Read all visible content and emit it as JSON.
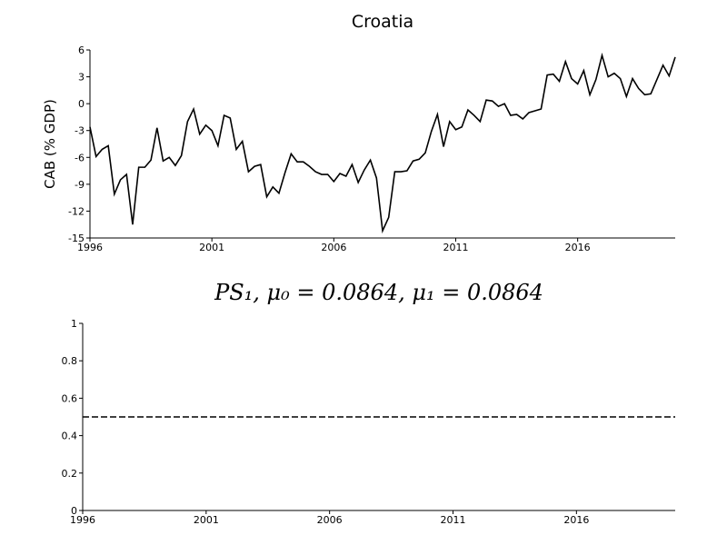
{
  "chart_data": [
    {
      "type": "line",
      "title": "Croatia",
      "ylabel": "CAB (% GDP)",
      "x": [
        1996,
        1996.25,
        1996.5,
        1996.75,
        1997,
        1997.25,
        1997.5,
        1997.75,
        1998,
        1998.25,
        1998.5,
        1998.75,
        1999,
        1999.25,
        1999.5,
        1999.75,
        2000,
        2000.25,
        2000.5,
        2000.75,
        2001,
        2001.25,
        2001.5,
        2001.75,
        2002,
        2002.25,
        2002.5,
        2002.75,
        2003,
        2003.25,
        2003.5,
        2003.75,
        2004,
        2004.25,
        2004.5,
        2004.75,
        2005,
        2005.25,
        2005.5,
        2005.75,
        2006,
        2006.25,
        2006.5,
        2006.75,
        2007,
        2007.25,
        2007.5,
        2007.75,
        2008,
        2008.25,
        2008.5,
        2008.75,
        2009,
        2009.25,
        2009.5,
        2009.75,
        2010,
        2010.25,
        2010.5,
        2010.75,
        2011,
        2011.25,
        2011.5,
        2011.75,
        2012,
        2012.25,
        2012.5,
        2012.75,
        2013,
        2013.25,
        2013.5,
        2013.75,
        2014,
        2014.25,
        2014.5,
        2014.75,
        2015,
        2015.25,
        2015.5,
        2015.75,
        2016,
        2016.25,
        2016.5,
        2016.75,
        2017,
        2017.25,
        2017.5,
        2017.75,
        2018,
        2018.25,
        2018.5,
        2018.75,
        2019,
        2019.25,
        2019.5,
        2019.75,
        2020
      ],
      "series": [
        {
          "color": "#000000",
          "values": [
            -2.6,
            -5.9,
            -5.1,
            -4.7,
            -10.1,
            -8.5,
            -7.9,
            -13.5,
            -7.1,
            -7.1,
            -6.3,
            -2.7,
            -6.4,
            -6.0,
            -6.9,
            -5.8,
            -2.0,
            -0.6,
            -3.4,
            -2.4,
            -3.0,
            -4.7,
            -1.3,
            -1.6,
            -5.1,
            -4.2,
            -7.6,
            -7.0,
            -6.8,
            -10.4,
            -9.3,
            -10.0,
            -7.7,
            -5.6,
            -6.5,
            -6.5,
            -7.0,
            -7.6,
            -7.9,
            -7.9,
            -8.7,
            -7.8,
            -8.1,
            -6.8,
            -8.8,
            -7.4,
            -6.3,
            -8.3,
            -14.2,
            -12.7,
            -7.6,
            -7.6,
            -7.5,
            -6.4,
            -6.2,
            -5.5,
            -3.1,
            -1.2,
            -4.8,
            -2.0,
            -2.9,
            -2.6,
            -0.7,
            -1.3,
            -2.0,
            0.4,
            0.3,
            -0.3,
            0.0,
            -1.3,
            -1.2,
            -1.7,
            -1.0,
            -0.8,
            -0.6,
            3.2,
            3.3,
            2.5,
            4.7,
            2.8,
            2.2,
            3.7,
            1.0,
            2.7,
            5.4,
            3.0,
            3.4,
            2.8,
            0.8,
            2.8,
            1.7,
            1.0,
            1.1,
            2.7,
            4.3,
            3.1,
            5.2
          ]
        }
      ],
      "xlim": [
        1996,
        2020
      ],
      "ylim": [
        -15,
        6
      ],
      "xticks": [
        1996,
        2001,
        2006,
        2011,
        2016
      ],
      "yticks": [
        -15,
        -12,
        -9,
        -6,
        -3,
        0,
        3,
        6
      ]
    },
    {
      "type": "line",
      "title": "PS₁, μ₀ = 0.0864, μ₁ = 0.0864",
      "x": [
        1996,
        2020
      ],
      "series": [
        {
          "color": "#000000",
          "linestyle": "dashed",
          "values": [
            0.5,
            0.5
          ]
        }
      ],
      "xlim": [
        1996,
        2020
      ],
      "ylim": [
        0,
        1
      ],
      "xticks": [
        1996,
        2001,
        2006,
        2011,
        2016
      ],
      "yticks": [
        0,
        0.2,
        0.4,
        0.6,
        0.8,
        1
      ]
    }
  ]
}
